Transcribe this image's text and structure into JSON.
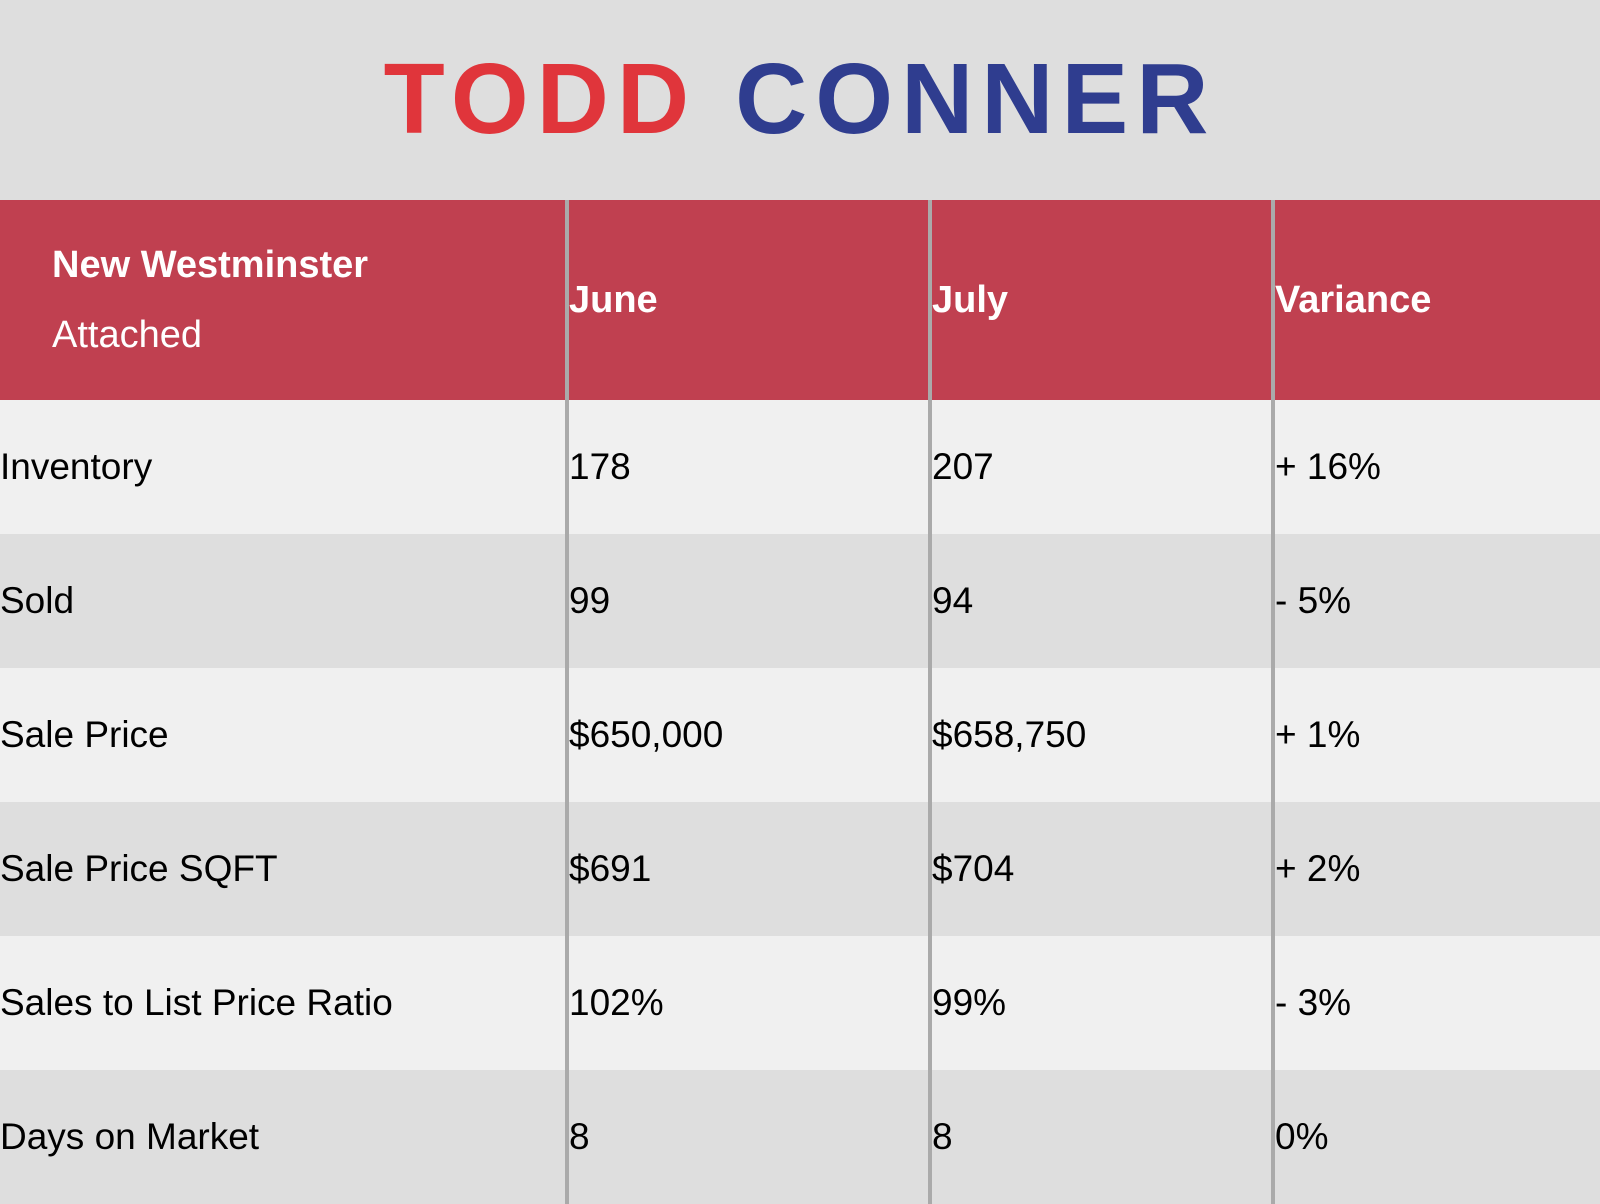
{
  "brand": {
    "first_name": "TODD",
    "last_name": "CONNER",
    "first_color": "#e0353b",
    "last_color": "#2f3d8f"
  },
  "table": {
    "header": {
      "area": "New Westminster",
      "type": "Attached",
      "col_june": "June",
      "col_july": "July",
      "col_variance": "Variance",
      "background": "#c04050"
    },
    "rows": [
      {
        "metric": "Inventory",
        "june": "178",
        "july": "207",
        "variance": "+ 16%"
      },
      {
        "metric": "Sold",
        "june": "99",
        "july": "94",
        "variance": "- 5%"
      },
      {
        "metric": "Sale Price",
        "june": "$650,000",
        "july": "$658,750",
        "variance": "+ 1%"
      },
      {
        "metric": "Sale Price SQFT",
        "june": "$691",
        "july": "$704",
        "variance": "+ 2%"
      },
      {
        "metric": "Sales to List Price Ratio",
        "june": "102%",
        "july": "99%",
        "variance": "- 3%"
      },
      {
        "metric": "Days on Market",
        "june": "8",
        "july": "8",
        "variance": "0%"
      }
    ]
  }
}
